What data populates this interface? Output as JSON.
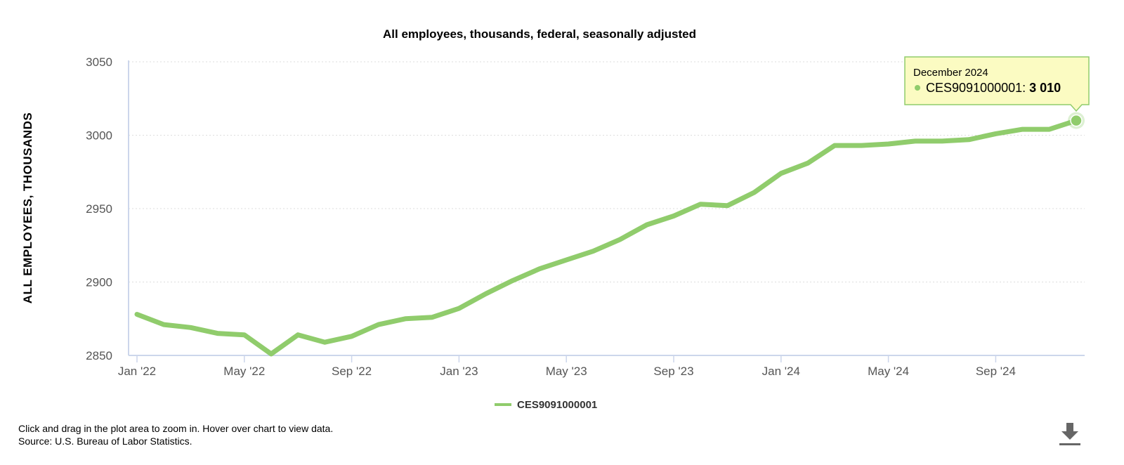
{
  "chart_data": {
    "type": "line",
    "title": "All employees, thousands, federal, seasonally adjusted",
    "ylabel": "ALL EMPLOYEES, THOUSANDS",
    "xlabel": "",
    "ylim": [
      2850,
      3050
    ],
    "yticks": [
      "2850",
      "2900",
      "2950",
      "3000",
      "3050"
    ],
    "yticks_values": [
      2850,
      2900,
      2950,
      3000,
      3050
    ],
    "xticks": [
      {
        "label": "Jan '22",
        "month": "2022-01"
      },
      {
        "label": "May '22",
        "month": "2022-05"
      },
      {
        "label": "Sep '22",
        "month": "2022-09"
      },
      {
        "label": "Jan '23",
        "month": "2023-01"
      },
      {
        "label": "May '23",
        "month": "2023-05"
      },
      {
        "label": "Sep '23",
        "month": "2023-09"
      },
      {
        "label": "Jan '24",
        "month": "2024-01"
      },
      {
        "label": "May '24",
        "month": "2024-05"
      },
      {
        "label": "Sep '24",
        "month": "2024-09"
      }
    ],
    "grid": "horizontal dotted",
    "legend_position": "bottom-center",
    "series": [
      {
        "name": "CES9091000001",
        "color": "#90cc6c",
        "x": [
          "2022-01",
          "2022-02",
          "2022-03",
          "2022-04",
          "2022-05",
          "2022-06",
          "2022-07",
          "2022-08",
          "2022-09",
          "2022-10",
          "2022-11",
          "2022-12",
          "2023-01",
          "2023-02",
          "2023-03",
          "2023-04",
          "2023-05",
          "2023-06",
          "2023-07",
          "2023-08",
          "2023-09",
          "2023-10",
          "2023-11",
          "2023-12",
          "2024-01",
          "2024-02",
          "2024-03",
          "2024-04",
          "2024-05",
          "2024-06",
          "2024-07",
          "2024-08",
          "2024-09",
          "2024-10",
          "2024-11",
          "2024-12"
        ],
        "values": [
          2878,
          2871,
          2869,
          2865,
          2864,
          2851,
          2864,
          2859,
          2863,
          2871,
          2875,
          2876,
          2882,
          2892,
          2901,
          2909,
          2915,
          2921,
          2929,
          2939,
          2945,
          2953,
          2952,
          2961,
          2974,
          2981,
          2993,
          2993,
          2994,
          2996,
          2996,
          2997,
          3001,
          3004,
          3004,
          3010
        ]
      }
    ],
    "tooltip": {
      "date": "December 2024",
      "series": "CES9091000001:",
      "value": "3 010"
    }
  },
  "footer": {
    "note1": "Click and drag in the plot area to zoom in. Hover over chart to view data.",
    "note2": "Source: U.S. Bureau of Labor Statistics."
  },
  "icons": {
    "download": "download-icon"
  }
}
